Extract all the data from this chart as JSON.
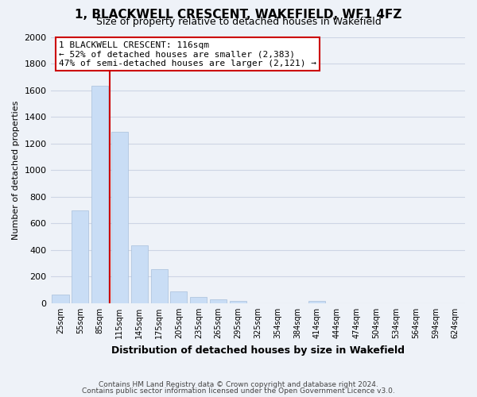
{
  "title": "1, BLACKWELL CRESCENT, WAKEFIELD, WF1 4FZ",
  "subtitle": "Size of property relative to detached houses in Wakefield",
  "xlabel": "Distribution of detached houses by size in Wakefield",
  "ylabel": "Number of detached properties",
  "footnote1": "Contains HM Land Registry data © Crown copyright and database right 2024.",
  "footnote2": "Contains public sector information licensed under the Open Government Licence v3.0.",
  "categories": [
    "25sqm",
    "55sqm",
    "85sqm",
    "115sqm",
    "145sqm",
    "175sqm",
    "205sqm",
    "235sqm",
    "265sqm",
    "295sqm",
    "325sqm",
    "354sqm",
    "384sqm",
    "414sqm",
    "444sqm",
    "474sqm",
    "504sqm",
    "534sqm",
    "564sqm",
    "594sqm",
    "624sqm"
  ],
  "values": [
    65,
    695,
    1635,
    1285,
    435,
    255,
    90,
    50,
    30,
    20,
    0,
    0,
    0,
    15,
    0,
    0,
    0,
    0,
    0,
    0,
    0
  ],
  "bar_color": "#c9ddf5",
  "bar_edge_color": "#a8c0dc",
  "marker_bar_idx": 2,
  "marker_line_color": "#cc0000",
  "annotation_text_line1": "1 BLACKWELL CRESCENT: 116sqm",
  "annotation_text_line2": "← 52% of detached houses are smaller (2,383)",
  "annotation_text_line3": "47% of semi-detached houses are larger (2,121) →",
  "annotation_box_facecolor": "#ffffff",
  "annotation_box_edgecolor": "#cc0000",
  "ylim": [
    0,
    2000
  ],
  "yticks": [
    0,
    200,
    400,
    600,
    800,
    1000,
    1200,
    1400,
    1600,
    1800,
    2000
  ],
  "grid_color": "#cdd5e5",
  "bg_color": "#eef2f8",
  "title_fontsize": 11,
  "subtitle_fontsize": 9
}
